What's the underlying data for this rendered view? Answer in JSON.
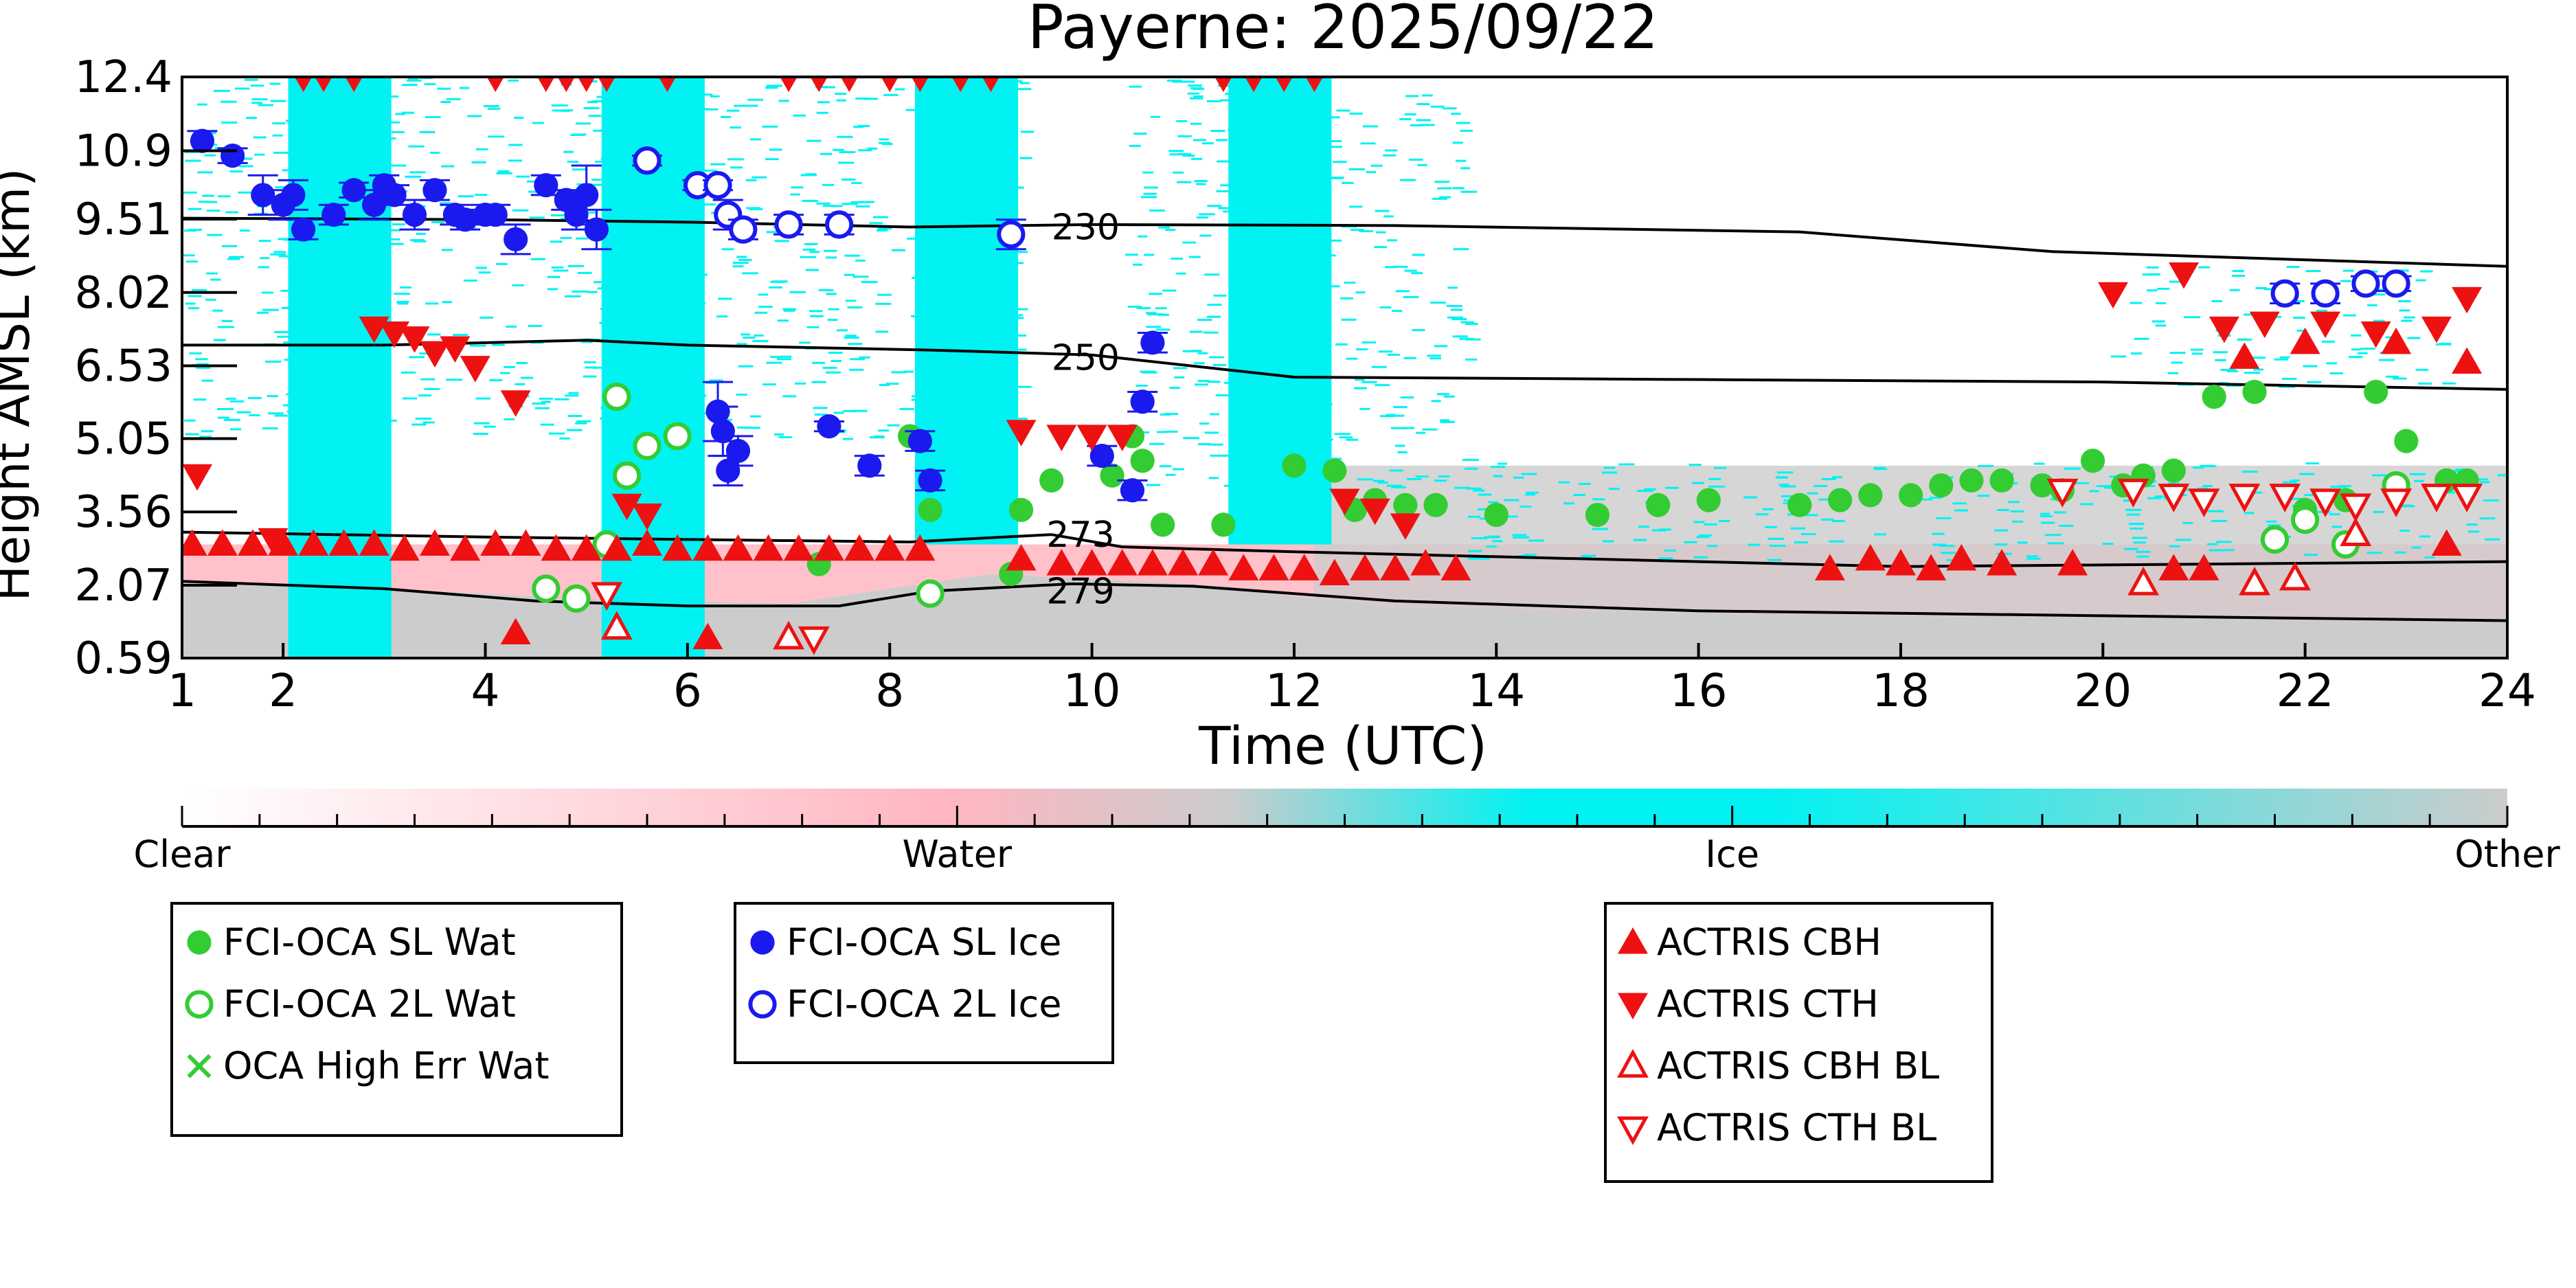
{
  "chart_data": {
    "type": "scatter",
    "title": "Payerne: 2025/09/22",
    "xlabel": "Time (UTC)",
    "ylabel": "Height AMSL (km)",
    "xlim": [
      1,
      24
    ],
    "ylim": [
      0.59,
      12.4
    ],
    "xticks": [
      1,
      2,
      4,
      6,
      8,
      10,
      12,
      14,
      16,
      18,
      20,
      22,
      24
    ],
    "xticklabels": [
      "1",
      "2",
      "4",
      "6",
      "8",
      "10",
      "12",
      "14",
      "16",
      "18",
      "20",
      "22",
      "24"
    ],
    "yticks": [
      0.59,
      2.07,
      3.56,
      5.05,
      6.53,
      8.02,
      9.51,
      10.9,
      12.4
    ],
    "yticklabels": [
      "0.59",
      "2.07",
      "3.56",
      "5.05",
      "6.53",
      "8.02",
      "9.51",
      "10.9",
      "12.4"
    ],
    "colors": {
      "clear": "#ffffff",
      "water": "#ffb6c1",
      "ice": "#00f2f2",
      "other": "#cccccc",
      "fci_wat": "#33cc33",
      "fci_ice": "#1a1aee",
      "actris": "#ee1111",
      "isotherm": "#000000"
    },
    "colorbar": {
      "labels": [
        "Clear",
        "Water",
        "Ice",
        "Other"
      ],
      "stops": [
        {
          "pos": 0.0,
          "color": "#ffffff"
        },
        {
          "pos": 0.33,
          "color": "#ffb6c1"
        },
        {
          "pos": 0.45,
          "color": "#cccccc"
        },
        {
          "pos": 0.58,
          "color": "#00f2f2"
        },
        {
          "pos": 0.68,
          "color": "#00f2f2"
        },
        {
          "pos": 1.0,
          "color": "#cccccc"
        }
      ]
    },
    "background": {
      "other_band": {
        "x": [
          1,
          24
        ],
        "y_low": 0.59,
        "y_top": [
          [
            1,
            2.1
          ],
          [
            3,
            2.0
          ],
          [
            5,
            1.8
          ],
          [
            7,
            1.7
          ],
          [
            9,
            2.3
          ],
          [
            11,
            2.1
          ],
          [
            13,
            1.6
          ],
          [
            16,
            1.5
          ],
          [
            20,
            1.4
          ],
          [
            24,
            1.4
          ]
        ]
      },
      "water_band": {
        "x": [
          1,
          24
        ],
        "y_low": [
          [
            1,
            2.1
          ],
          [
            3,
            2.0
          ],
          [
            5,
            1.8
          ],
          [
            7,
            1.7
          ],
          [
            9,
            2.3
          ],
          [
            11,
            2.1
          ],
          [
            13,
            1.6
          ],
          [
            16,
            1.5
          ],
          [
            20,
            1.4
          ],
          [
            24,
            1.4
          ]
        ],
        "y_top": 2.9
      },
      "ice_columns": [
        {
          "x0": 2.05,
          "x1": 3.07,
          "y0": 0.59,
          "y1": 12.4
        },
        {
          "x0": 5.15,
          "x1": 6.17,
          "y0": 0.59,
          "y1": 12.4
        },
        {
          "x0": 8.25,
          "x1": 9.27,
          "y0": 2.9,
          "y1": 12.4
        },
        {
          "x0": 11.35,
          "x1": 12.37,
          "y0": 2.9,
          "y1": 12.4
        }
      ],
      "ice_cirrus": [
        {
          "x0": 1,
          "x1": 9.3,
          "y0": 5.0,
          "y1": 12.4
        },
        {
          "x0": 10.3,
          "x1": 13.7,
          "y0": 4.0,
          "y1": 12.4
        },
        {
          "x0": 20.0,
          "x1": 23.5,
          "y0": 6.1,
          "y1": 8.6
        },
        {
          "x0": 13.7,
          "x1": 24.0,
          "y0": 2.6,
          "y1": 4.6
        }
      ],
      "other_patches": [
        {
          "x0": 12.2,
          "x1": 24,
          "y0": 1.3,
          "y1": 4.5
        }
      ]
    },
    "isotherms": [
      {
        "label": "230",
        "label_x": 9.6,
        "label_y": 9.35,
        "points": [
          [
            1,
            9.53
          ],
          [
            4,
            9.5
          ],
          [
            6,
            9.45
          ],
          [
            8.2,
            9.35
          ],
          [
            10,
            9.4
          ],
          [
            13,
            9.38
          ],
          [
            17,
            9.25
          ],
          [
            19.5,
            8.85
          ],
          [
            24,
            8.55
          ]
        ]
      },
      {
        "label": "250",
        "label_x": 9.6,
        "label_y": 6.7,
        "points": [
          [
            1,
            6.95
          ],
          [
            3,
            6.95
          ],
          [
            5,
            7.05
          ],
          [
            6,
            6.95
          ],
          [
            8.4,
            6.85
          ],
          [
            10,
            6.75
          ],
          [
            12,
            6.3
          ],
          [
            16,
            6.25
          ],
          [
            20,
            6.2
          ],
          [
            24,
            6.05
          ]
        ]
      },
      {
        "label": "273",
        "label_x": 9.55,
        "label_y": 3.1,
        "points": [
          [
            1,
            3.15
          ],
          [
            4,
            3.05
          ],
          [
            6,
            3.0
          ],
          [
            8.2,
            2.95
          ],
          [
            9.6,
            3.1
          ],
          [
            10.3,
            2.85
          ],
          [
            12,
            2.75
          ],
          [
            14,
            2.65
          ],
          [
            18,
            2.45
          ],
          [
            24,
            2.55
          ]
        ]
      },
      {
        "label": "279",
        "label_x": 9.55,
        "label_y": 1.95,
        "points": [
          [
            1,
            2.15
          ],
          [
            3,
            2.0
          ],
          [
            4.5,
            1.75
          ],
          [
            6,
            1.65
          ],
          [
            7.5,
            1.65
          ],
          [
            8.4,
            1.95
          ],
          [
            9.8,
            2.1
          ],
          [
            11,
            2.05
          ],
          [
            13,
            1.75
          ],
          [
            16,
            1.55
          ],
          [
            20,
            1.45
          ],
          [
            24,
            1.35
          ]
        ]
      }
    ],
    "legend_groups": [
      {
        "entries": [
          "FCI-OCA SL Wat",
          "FCI-OCA 2L Wat",
          "OCA High Err Wat"
        ]
      },
      {
        "entries": [
          "FCI-OCA SL Ice",
          "FCI-OCA 2L Ice"
        ]
      },
      {
        "entries": [
          "ACTRIS CBH",
          "ACTRIS CTH",
          "ACTRIS CBH BL",
          "ACTRIS CTH BL"
        ]
      }
    ],
    "series": [
      {
        "name": "FCI-OCA SL Wat",
        "marker": "circle-filled",
        "color": "#33cc33",
        "x": [
          7.3,
          8.2,
          8.4,
          9.2,
          9.3,
          9.6,
          10.2,
          10.4,
          10.5,
          10.7,
          11.3,
          12.0,
          12.4,
          12.6,
          12.8,
          13.1,
          13.4,
          14.0,
          15.0,
          15.6,
          16.1,
          17.0,
          17.4,
          17.7,
          18.1,
          18.4,
          18.7,
          19.0,
          19.4,
          19.6,
          19.9,
          20.2,
          20.4,
          20.7,
          21.1,
          21.5,
          22.0,
          22.4,
          22.7,
          23.0,
          23.4,
          23.6
        ],
        "y": [
          2.5,
          5.1,
          3.6,
          2.3,
          3.6,
          4.2,
          4.3,
          5.1,
          4.6,
          3.3,
          3.3,
          4.5,
          4.4,
          3.6,
          3.8,
          3.7,
          3.7,
          3.5,
          3.5,
          3.7,
          3.8,
          3.7,
          3.8,
          3.9,
          3.9,
          4.1,
          4.2,
          4.2,
          4.1,
          4.0,
          4.6,
          4.1,
          4.3,
          4.4,
          5.9,
          6.0,
          3.6,
          3.8,
          6.0,
          5.0,
          4.2,
          4.2
        ]
      },
      {
        "name": "FCI-OCA 2L Wat",
        "marker": "circle-open",
        "color": "#33cc33",
        "x": [
          4.6,
          4.9,
          5.2,
          5.3,
          5.4,
          5.6,
          5.9,
          8.4,
          21.7,
          22.0,
          22.4,
          22.9
        ],
        "y": [
          2.0,
          1.8,
          2.9,
          5.9,
          4.3,
          4.9,
          5.1,
          1.9,
          3.0,
          3.4,
          2.9,
          4.1
        ]
      },
      {
        "name": "OCA High Err Wat",
        "marker": "x",
        "color": "#33cc33",
        "x": [],
        "y": []
      },
      {
        "name": "FCI-OCA SL Ice",
        "marker": "circle-filled",
        "color": "#1a1aee",
        "x": [
          1.2,
          1.5,
          1.8,
          2.0,
          2.1,
          2.2,
          2.5,
          2.7,
          2.9,
          3.0,
          3.1,
          3.3,
          3.5,
          3.7,
          3.8,
          4.0,
          4.1,
          4.3,
          4.6,
          4.8,
          4.9,
          5.0,
          5.1,
          6.3,
          6.35,
          6.4,
          6.5,
          7.4,
          7.8,
          8.3,
          8.4,
          10.1,
          10.4,
          10.5,
          10.6
        ],
        "y": [
          11.1,
          10.8,
          10.0,
          9.8,
          10.0,
          9.3,
          9.6,
          10.1,
          9.8,
          10.2,
          10.0,
          9.6,
          10.1,
          9.6,
          9.5,
          9.6,
          9.6,
          9.1,
          10.2,
          9.9,
          9.6,
          10.0,
          9.3,
          5.6,
          5.2,
          4.4,
          4.8,
          5.3,
          4.5,
          5.0,
          4.2,
          4.7,
          4.0,
          5.8,
          7.0
        ],
        "y_err": [
          0.2,
          0.15,
          0.4,
          0.3,
          0.3,
          0.2,
          0.2,
          0.15,
          0.3,
          0.2,
          0.2,
          0.3,
          0.2,
          0.2,
          0.2,
          0.2,
          0.2,
          0.3,
          0.2,
          0.2,
          0.3,
          0.6,
          0.4,
          0.6,
          0.5,
          0.3,
          0.3,
          0.1,
          0.2,
          0.2,
          0.2,
          0.2,
          0.2,
          0.2,
          0.2
        ]
      },
      {
        "name": "FCI-OCA 2L Ice",
        "marker": "circle-open",
        "color": "#1a1aee",
        "x": [
          5.6,
          6.1,
          6.3,
          6.4,
          6.55,
          7.0,
          7.5,
          9.2,
          21.8,
          22.2,
          22.6,
          22.9
        ],
        "y": [
          10.7,
          10.2,
          10.2,
          9.6,
          9.3,
          9.4,
          9.4,
          9.2,
          8.0,
          8.0,
          8.2,
          8.2
        ],
        "y_err": [
          0.1,
          0.1,
          0.1,
          0.3,
          0.2,
          0.2,
          0.2,
          0.3,
          0.2,
          0.2,
          0.15,
          0.15
        ]
      },
      {
        "name": "ACTRIS CBH",
        "marker": "triangle-up-filled",
        "color": "#ee1111",
        "x": [
          1.1,
          1.4,
          1.7,
          2.0,
          2.3,
          2.6,
          2.9,
          3.2,
          3.5,
          3.8,
          4.1,
          4.4,
          4.7,
          5.0,
          5.3,
          5.6,
          5.9,
          6.2,
          6.5,
          6.8,
          7.1,
          7.4,
          7.7,
          8.0,
          8.3,
          9.3,
          9.7,
          10.0,
          10.3,
          10.6,
          10.9,
          11.2,
          11.5,
          11.8,
          12.1,
          12.4,
          12.7,
          13.0,
          13.3,
          13.6,
          17.3,
          17.7,
          18.0,
          18.3,
          18.6,
          19.0,
          19.7,
          20.7,
          21.0,
          21.4,
          22.0,
          22.9,
          23.4,
          23.6,
          4.3,
          6.2
        ],
        "y": [
          2.9,
          2.9,
          2.9,
          2.9,
          2.9,
          2.9,
          2.9,
          2.8,
          2.9,
          2.8,
          2.9,
          2.9,
          2.8,
          2.8,
          2.8,
          2.9,
          2.8,
          2.8,
          2.8,
          2.8,
          2.8,
          2.8,
          2.8,
          2.8,
          2.8,
          2.6,
          2.5,
          2.5,
          2.5,
          2.5,
          2.5,
          2.5,
          2.4,
          2.4,
          2.4,
          2.3,
          2.4,
          2.4,
          2.5,
          2.4,
          2.4,
          2.6,
          2.5,
          2.4,
          2.6,
          2.5,
          2.5,
          2.4,
          2.4,
          6.7,
          7.0,
          7.0,
          2.9,
          6.6,
          1.1,
          1.0
        ]
      },
      {
        "name": "ACTRIS CTH",
        "marker": "triangle-down-filled",
        "color": "#ee1111",
        "x": [
          1.15,
          1.9,
          2.2,
          2.4,
          2.7,
          2.9,
          3.1,
          3.3,
          3.5,
          3.7,
          3.9,
          4.1,
          4.3,
          4.6,
          4.8,
          5.0,
          5.2,
          5.4,
          5.6,
          5.8,
          7.0,
          7.3,
          7.6,
          8.0,
          8.3,
          8.7,
          9.0,
          9.3,
          9.7,
          10.0,
          10.3,
          11.3,
          11.6,
          11.9,
          12.2,
          12.5,
          12.8,
          13.1,
          20.1,
          20.8,
          21.2,
          21.6,
          22.2,
          22.7,
          23.3,
          23.6
        ],
        "y": [
          4.3,
          3.0,
          12.4,
          12.4,
          12.4,
          7.3,
          7.2,
          7.1,
          6.8,
          6.9,
          6.5,
          12.4,
          5.8,
          12.4,
          12.4,
          12.4,
          12.4,
          3.7,
          3.5,
          12.4,
          12.4,
          12.4,
          12.4,
          12.4,
          12.4,
          12.4,
          12.4,
          5.2,
          5.1,
          5.1,
          5.1,
          12.4,
          12.4,
          12.4,
          12.4,
          3.8,
          3.6,
          3.3,
          8.0,
          8.4,
          7.3,
          7.4,
          7.4,
          7.2,
          7.3,
          7.9
        ]
      },
      {
        "name": "ACTRIS CBH BL",
        "marker": "triangle-up-open",
        "color": "#ee1111",
        "x": [
          5.3,
          7.0,
          20.4,
          21.5,
          21.9,
          22.5
        ],
        "y": [
          1.2,
          1.0,
          2.1,
          2.1,
          2.2,
          3.1
        ],
        "y_err": [
          0,
          0,
          0,
          0,
          0,
          0
        ]
      },
      {
        "name": "ACTRIS CTH BL",
        "marker": "triangle-down-open",
        "color": "#ee1111",
        "x": [
          5.2,
          7.25,
          19.6,
          20.3,
          20.7,
          21.0,
          21.4,
          21.8,
          22.2,
          22.5,
          22.9,
          23.3,
          23.6
        ],
        "y": [
          1.9,
          1.0,
          4.0,
          4.0,
          3.9,
          3.8,
          3.9,
          3.9,
          3.8,
          3.7,
          3.8,
          3.9,
          3.9
        ]
      }
    ]
  }
}
